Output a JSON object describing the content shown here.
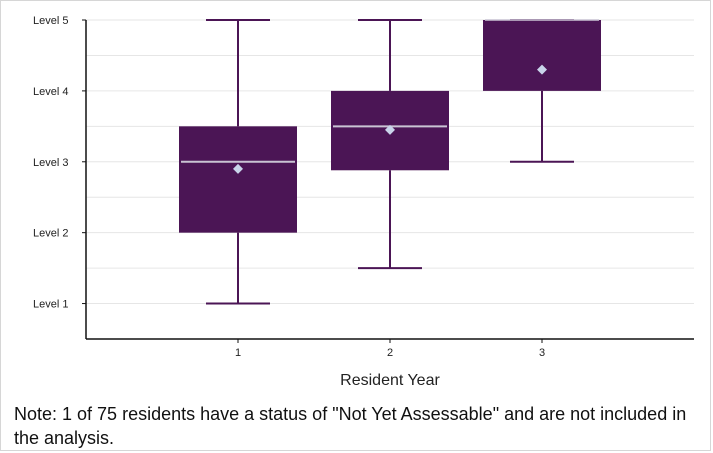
{
  "chart_data": {
    "type": "box",
    "categories": [
      "1",
      "2",
      "3"
    ],
    "y_tick_labels": [
      "Level 1",
      "Level 2",
      "Level 3",
      "Level 4",
      "Level 5"
    ],
    "y_tick_values": [
      1,
      2,
      3,
      4,
      5
    ],
    "ylim": [
      0.5,
      5
    ],
    "xlabel": "Resident Year",
    "ylabel": "",
    "grid": true,
    "boxes": [
      {
        "category": "1",
        "min": 1,
        "q1": 2,
        "median": 3,
        "q3": 3.5,
        "max": 5,
        "mean": 2.9
      },
      {
        "category": "2",
        "min": 1.5,
        "q1": 2.88,
        "median": 3.5,
        "q3": 4,
        "max": 5,
        "mean": 3.45
      },
      {
        "category": "3",
        "min": 3,
        "q1": 4,
        "median": 5,
        "q3": 5,
        "max": 5,
        "mean": 4.3
      }
    ],
    "colors": {
      "box": "#4b1555",
      "median": "#c9c3d3",
      "mean_marker": "#c9d4ea",
      "grid": "#e6e6e6",
      "axis": "#111111"
    }
  },
  "note": "Note: 1 of 75 residents have a status of \"Not Yet Assessable\" and are not included in the analysis."
}
